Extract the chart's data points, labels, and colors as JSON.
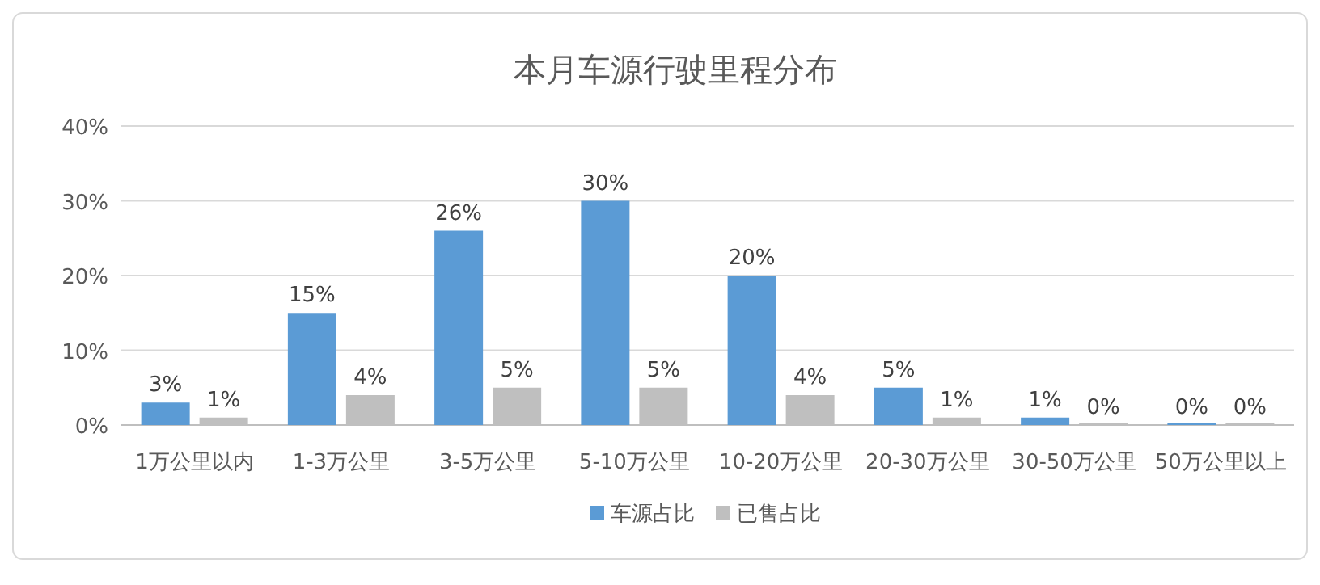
{
  "chart_data": {
    "type": "bar",
    "title": "本月车源行驶里程分布",
    "categories": [
      "1万公里以内",
      "1-3万公里",
      "3-5万公里",
      "5-10万公里",
      "10-20万公里",
      "20-30万公里",
      "30-50万公里",
      "50万公里以上"
    ],
    "series": [
      {
        "name": "车源占比",
        "color": "#5b9bd5",
        "values": [
          3,
          15,
          26,
          30,
          20,
          5,
          1,
          0
        ],
        "value_labels": [
          "3%",
          "15%",
          "26%",
          "30%",
          "20%",
          "5%",
          "1%",
          "0%"
        ]
      },
      {
        "name": "已售占比",
        "color": "#bfbfbf",
        "values": [
          1,
          4,
          5,
          5,
          4,
          1,
          0,
          0
        ],
        "value_labels": [
          "1%",
          "4%",
          "5%",
          "5%",
          "4%",
          "1%",
          "0%",
          "0%"
        ]
      }
    ],
    "ylim": [
      0,
      40
    ],
    "yticks": [
      {
        "value": 0,
        "label": "0%"
      },
      {
        "value": 10,
        "label": "10%"
      },
      {
        "value": 20,
        "label": "20%"
      },
      {
        "value": 30,
        "label": "30%"
      },
      {
        "value": 40,
        "label": "40%"
      }
    ],
    "grid": "y",
    "legend": "bottom"
  }
}
